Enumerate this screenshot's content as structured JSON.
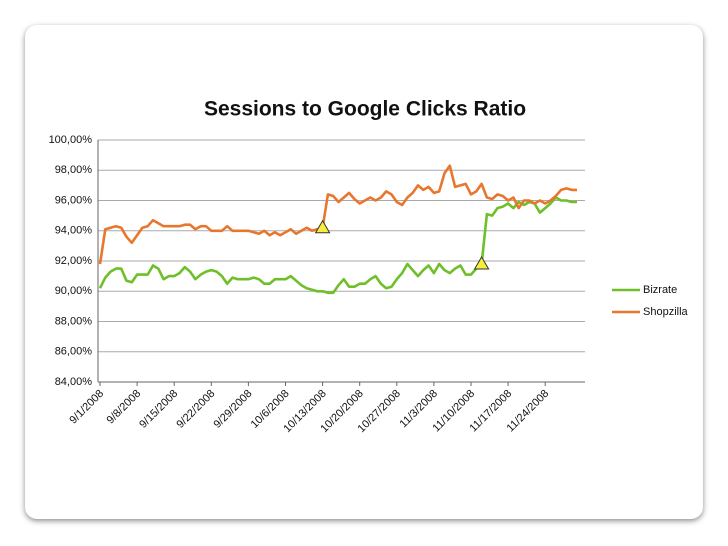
{
  "chart_data": {
    "type": "line",
    "title": "Sessions to Google Clicks Ratio",
    "categories": [
      "9/1/2008",
      null,
      null,
      null,
      null,
      null,
      null,
      "9/8/2008",
      null,
      null,
      null,
      null,
      null,
      null,
      "9/15/2008",
      null,
      null,
      null,
      null,
      null,
      null,
      "9/22/2008",
      null,
      null,
      null,
      null,
      null,
      null,
      "9/29/2008",
      null,
      null,
      null,
      null,
      null,
      null,
      "10/6/2008",
      null,
      null,
      null,
      null,
      null,
      null,
      "10/13/2008",
      null,
      null,
      null,
      null,
      null,
      null,
      "10/20/2008",
      null,
      null,
      null,
      null,
      null,
      null,
      "10/27/2008",
      null,
      null,
      null,
      null,
      null,
      null,
      "11/3/2008",
      null,
      null,
      null,
      null,
      null,
      null,
      "11/10/2008",
      null,
      null,
      null,
      null,
      null,
      null,
      "11/17/2008",
      null,
      null,
      null,
      null,
      null,
      null,
      "11/24/2008",
      null,
      null,
      null,
      null,
      null,
      null
    ],
    "series": [
      {
        "name": "Bizrate",
        "color": "#6fbf2a",
        "values": [
          90.2,
          90.9,
          91.3,
          91.5,
          91.5,
          90.7,
          90.6,
          91.1,
          91.1,
          91.1,
          91.7,
          91.5,
          90.8,
          91.0,
          91.0,
          91.2,
          91.6,
          91.3,
          90.8,
          91.1,
          91.3,
          91.4,
          91.3,
          91.0,
          90.5,
          90.9,
          90.8,
          90.8,
          90.8,
          90.9,
          90.8,
          90.5,
          90.5,
          90.8,
          90.8,
          90.8,
          91.0,
          90.7,
          90.4,
          90.2,
          90.1,
          90.0,
          90.0,
          89.9,
          89.9,
          90.4,
          90.8,
          90.3,
          90.3,
          90.5,
          90.5,
          90.8,
          91.0,
          90.5,
          90.2,
          90.3,
          90.8,
          91.2,
          91.8,
          91.4,
          91.0,
          91.4,
          91.7,
          91.2,
          91.8,
          91.4,
          91.2,
          91.5,
          91.7,
          91.1,
          91.1,
          91.5,
          91.8,
          95.1,
          95.0,
          95.5,
          95.6,
          95.8,
          95.5,
          95.9,
          95.7,
          95.9,
          95.8,
          95.2,
          95.5,
          95.8,
          96.2,
          96.0,
          96.0,
          95.9,
          95.9
        ]
      },
      {
        "name": "Shopzilla",
        "color": "#e8772e",
        "values": [
          91.8,
          94.1,
          94.2,
          94.3,
          94.2,
          93.6,
          93.2,
          93.7,
          94.2,
          94.3,
          94.7,
          94.5,
          94.3,
          94.3,
          94.3,
          94.3,
          94.4,
          94.4,
          94.1,
          94.3,
          94.3,
          94.0,
          94.0,
          94.0,
          94.3,
          94.0,
          94.0,
          94.0,
          94.0,
          93.9,
          93.8,
          94.0,
          93.7,
          93.9,
          93.7,
          93.9,
          94.1,
          93.8,
          94.0,
          94.2,
          94.0,
          94.1,
          94.2,
          96.4,
          96.3,
          95.9,
          96.2,
          96.5,
          96.1,
          95.8,
          96.0,
          96.2,
          96.0,
          96.2,
          96.6,
          96.4,
          95.9,
          95.7,
          96.2,
          96.5,
          97.0,
          96.7,
          96.9,
          96.5,
          96.6,
          97.8,
          98.3,
          96.9,
          97.0,
          97.1,
          96.4,
          96.6,
          97.1,
          96.2,
          96.1,
          96.4,
          96.3,
          96.0,
          96.2,
          95.5,
          96.0,
          96.0,
          95.8,
          96.0,
          95.8,
          96.0,
          96.3,
          96.7,
          96.8,
          96.7,
          96.7
        ]
      }
    ],
    "markers": [
      {
        "index": 42,
        "value": 94.2
      },
      {
        "index": 72,
        "value": 91.8
      }
    ],
    "ylim": [
      84,
      100
    ],
    "yticks": [
      {
        "value": 84,
        "label": "84,00%"
      },
      {
        "value": 86,
        "label": "86,00%"
      },
      {
        "value": 88,
        "label": "88,00%"
      },
      {
        "value": 90,
        "label": "90,00%"
      },
      {
        "value": 92,
        "label": "92,00%"
      },
      {
        "value": 94,
        "label": "94,00%"
      },
      {
        "value": 96,
        "label": "96,00%"
      },
      {
        "value": 98,
        "label": "98,00%"
      },
      {
        "value": 100,
        "label": "100,00%"
      }
    ],
    "grid": true,
    "legend": "right"
  }
}
